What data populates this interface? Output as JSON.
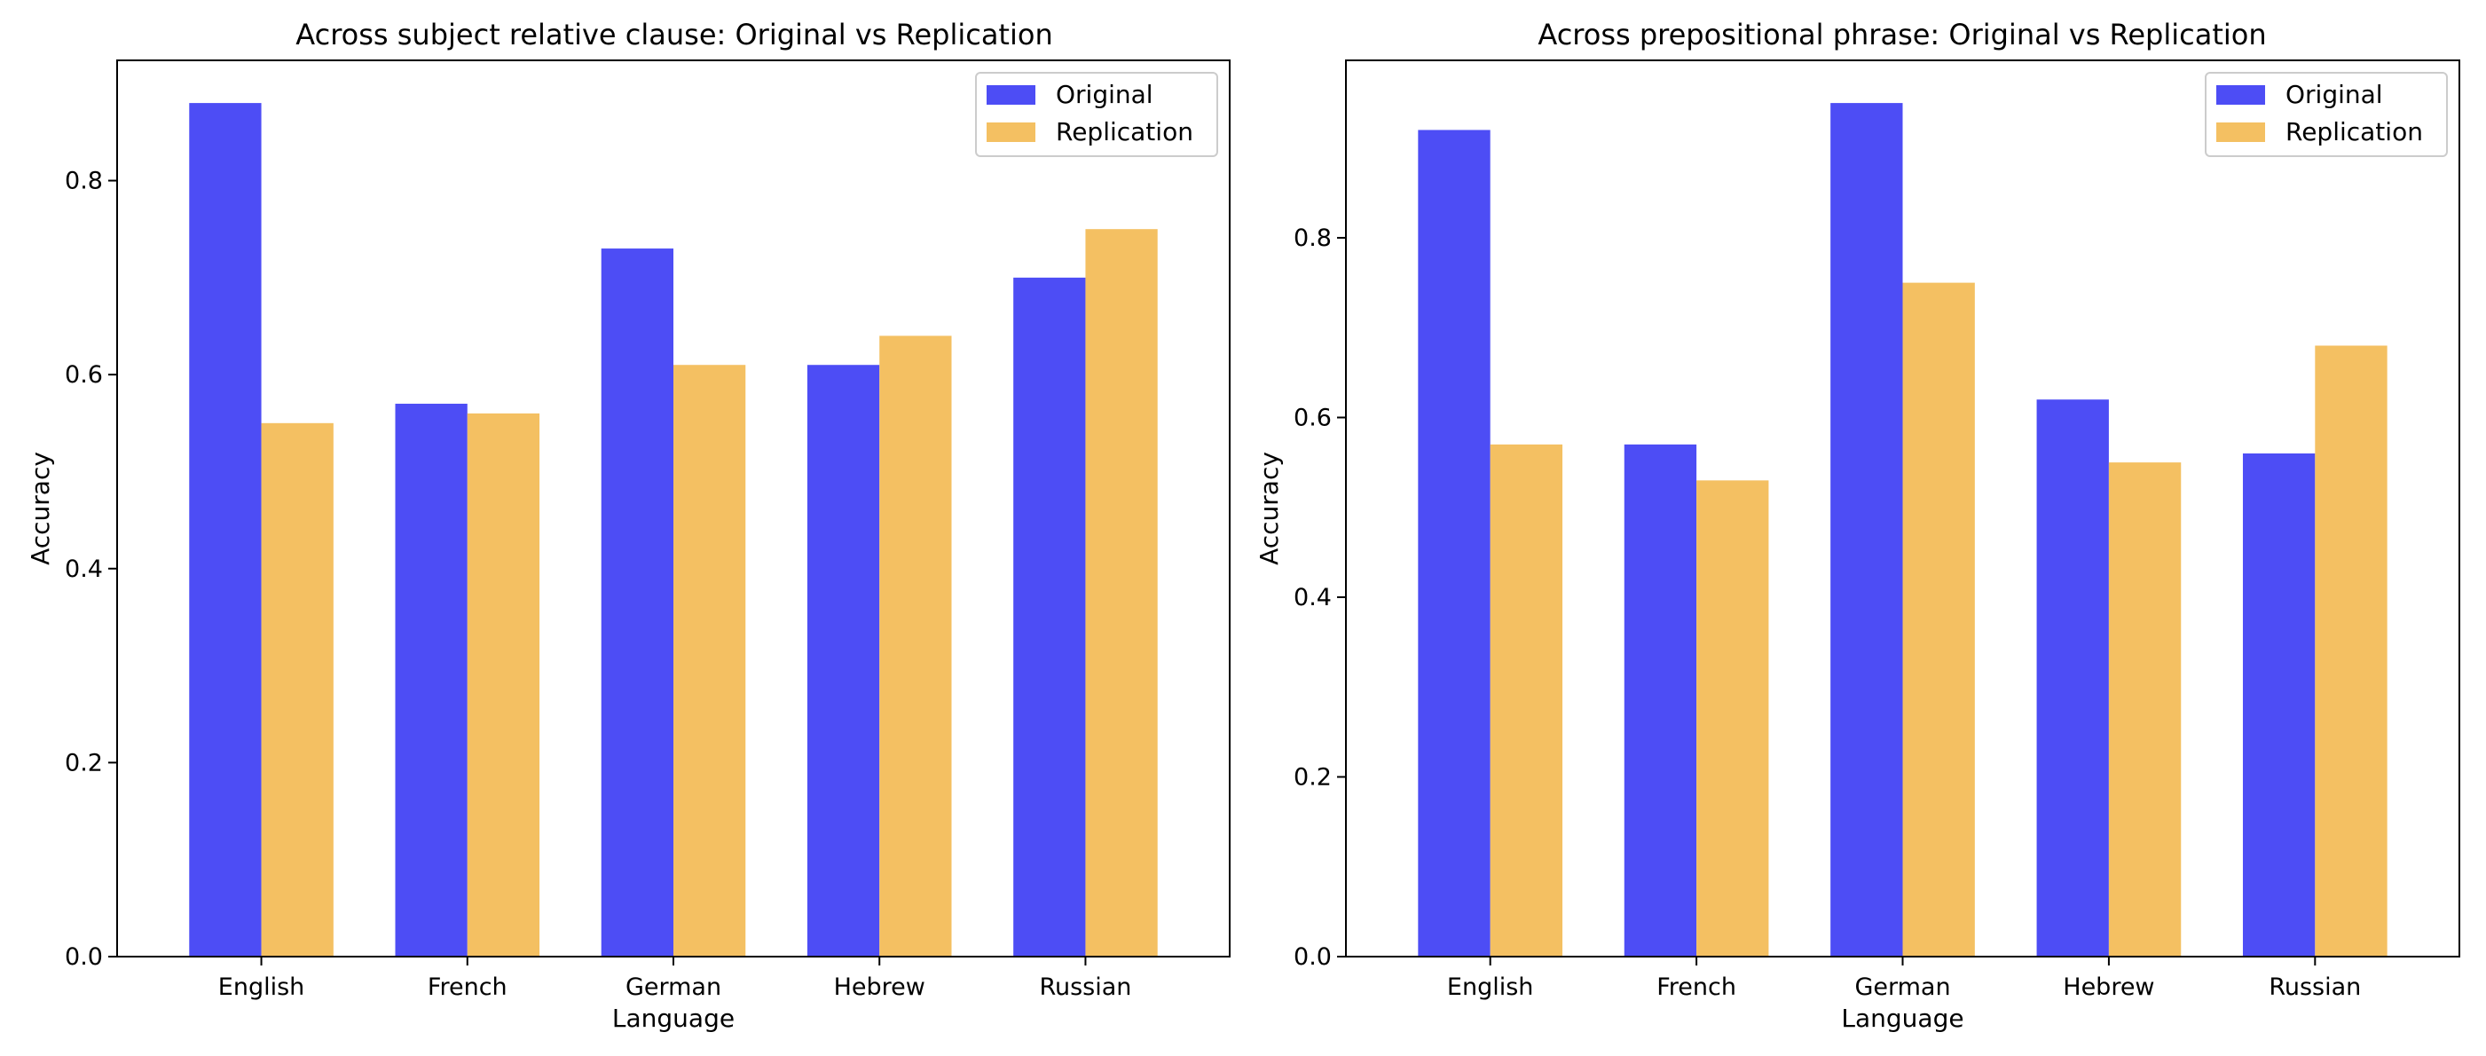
{
  "chart_data": [
    {
      "type": "bar",
      "title": "Across subject relative clause: Original vs Replication",
      "xlabel": "Language",
      "ylabel": "Accuracy",
      "categories": [
        "English",
        "French",
        "German",
        "Hebrew",
        "Russian"
      ],
      "series": [
        {
          "name": "Original",
          "values": [
            0.88,
            0.57,
            0.73,
            0.61,
            0.7
          ],
          "color": "#4d4df5"
        },
        {
          "name": "Replication",
          "values": [
            0.55,
            0.56,
            0.61,
            0.64,
            0.75
          ],
          "color": "#f4c062"
        }
      ],
      "ylim": [
        0,
        0.924
      ],
      "yticks": [
        0.0,
        0.2,
        0.4,
        0.6,
        0.8
      ],
      "ytick_labels": [
        "0.0",
        "0.2",
        "0.4",
        "0.6",
        "0.8"
      ],
      "legend": "top-right",
      "grid": false
    },
    {
      "type": "bar",
      "title": "Across prepositional phrase: Original vs Replication",
      "xlabel": "Language",
      "ylabel": "Accuracy",
      "categories": [
        "English",
        "French",
        "German",
        "Hebrew",
        "Russian"
      ],
      "series": [
        {
          "name": "Original",
          "values": [
            0.92,
            0.57,
            0.95,
            0.62,
            0.56
          ],
          "color": "#4d4df5"
        },
        {
          "name": "Replication",
          "values": [
            0.57,
            0.53,
            0.75,
            0.55,
            0.68
          ],
          "color": "#f4c062"
        }
      ],
      "ylim": [
        0,
        0.9975
      ],
      "yticks": [
        0.0,
        0.2,
        0.4,
        0.6,
        0.8
      ],
      "ytick_labels": [
        "0.0",
        "0.2",
        "0.4",
        "0.6",
        "0.8"
      ],
      "legend": "top-right",
      "grid": false
    }
  ]
}
